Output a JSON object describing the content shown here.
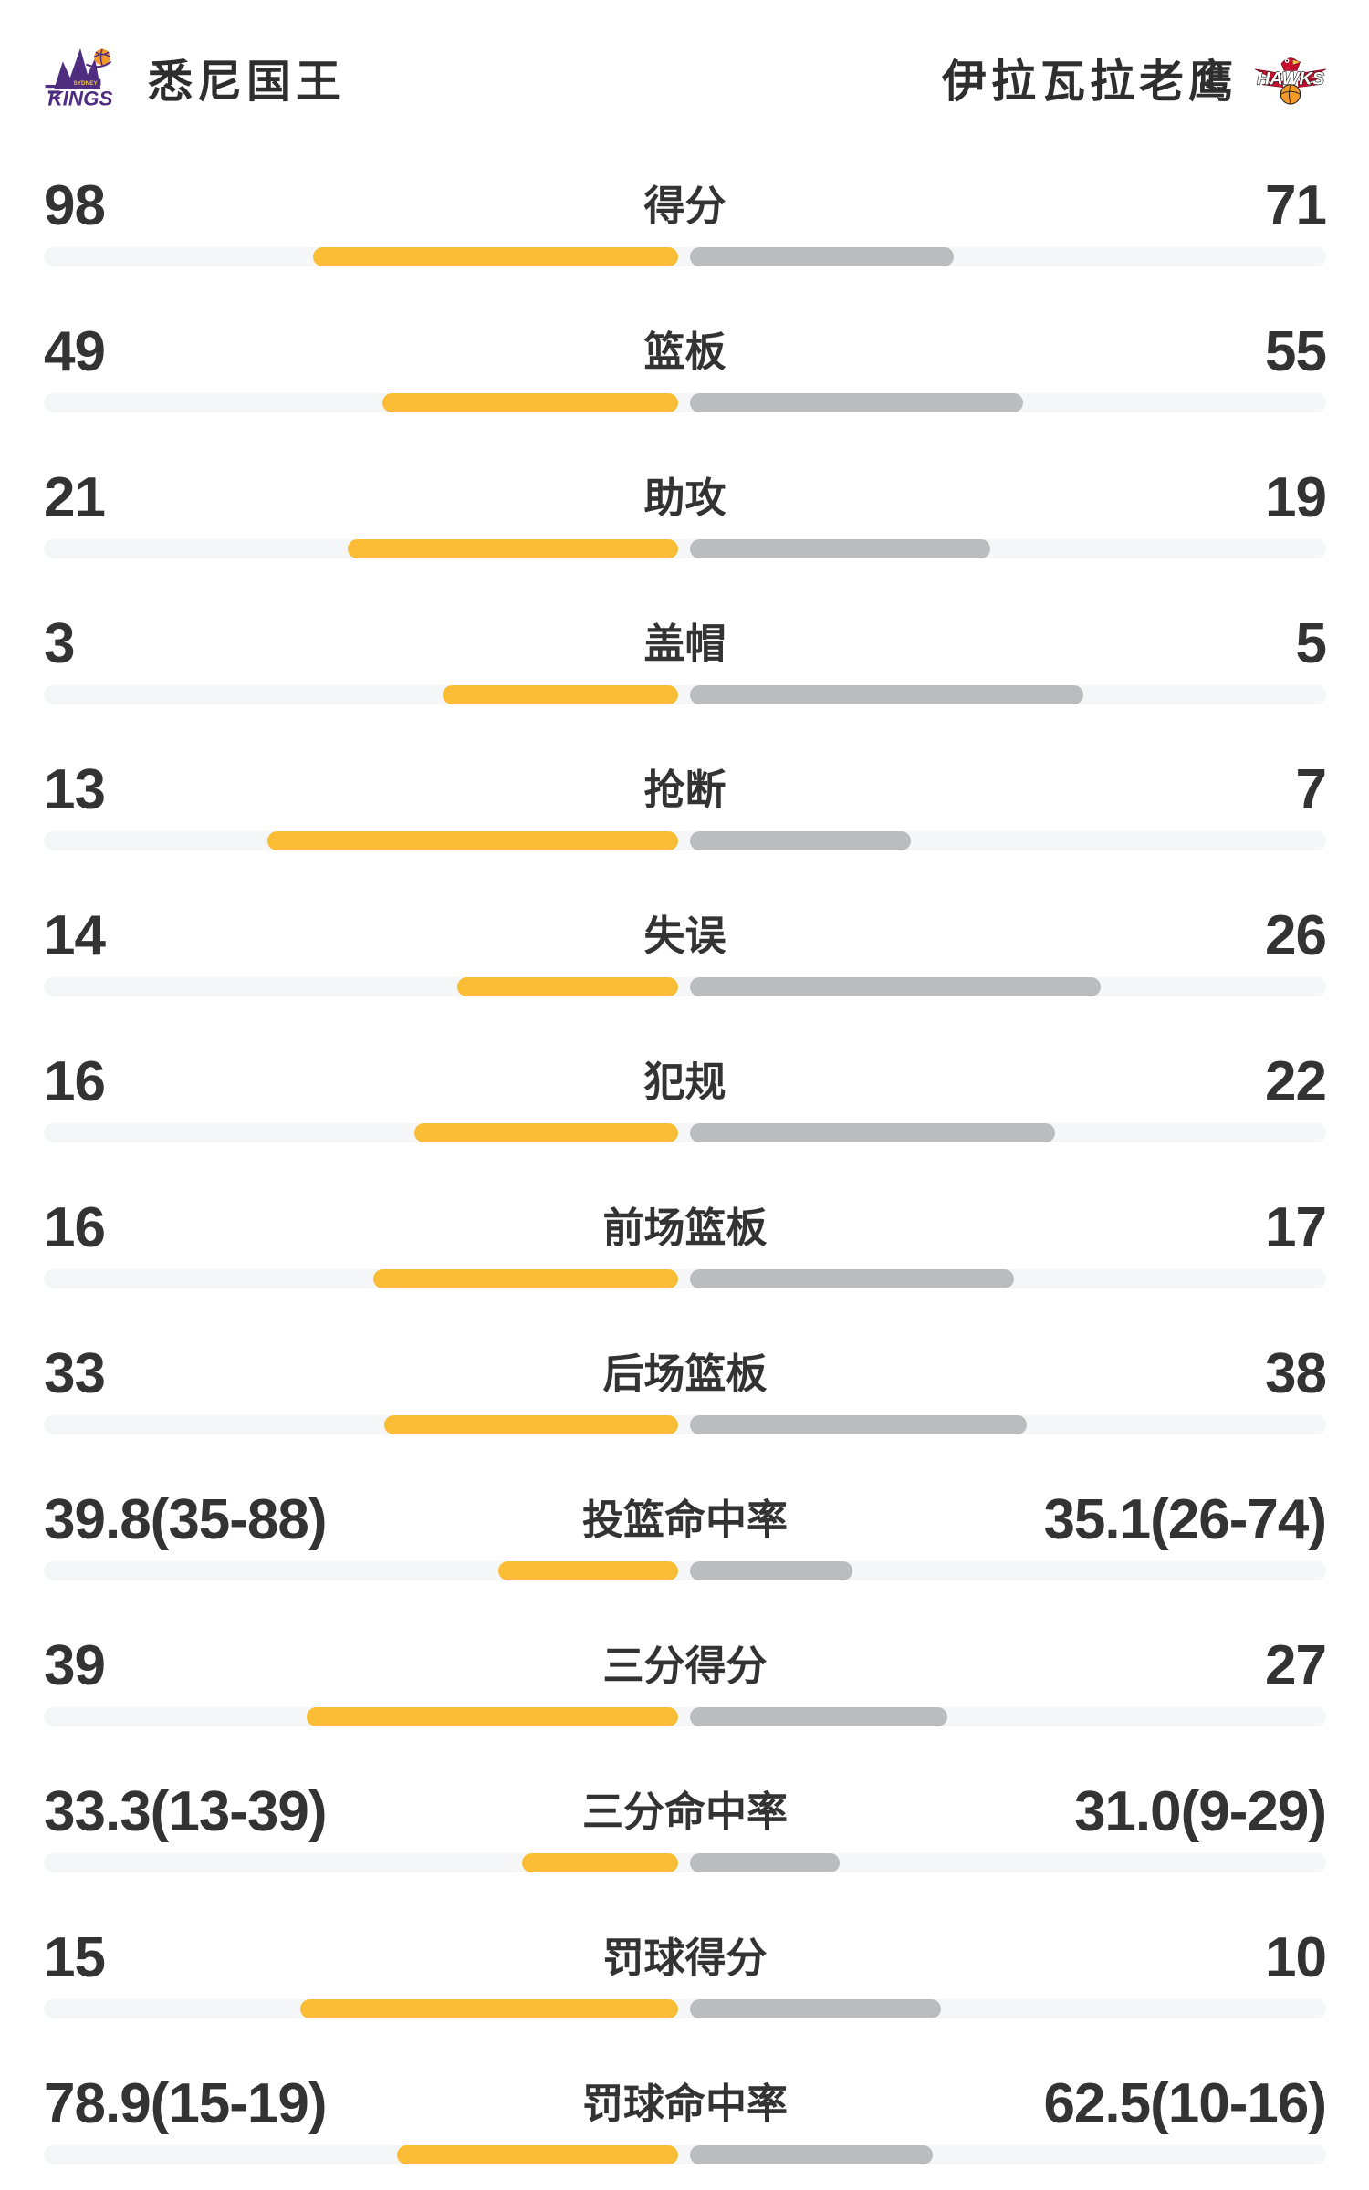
{
  "teams": {
    "left": {
      "name": "悉尼国王",
      "logo": "sydney-kings-logo"
    },
    "right": {
      "name": "伊拉瓦拉老鹰",
      "logo": "illawarra-hawks-logo"
    }
  },
  "colors": {
    "home_bar": "#FBBD35",
    "away_bar": "#BBBCBD",
    "track": "#F5F6F8",
    "text": "#333333",
    "kings_purple": "#4F2D7F",
    "hawks_red": "#C8102E",
    "ball_orange": "#F49A2B"
  },
  "stats": {
    "rows": [
      {
        "label": "得分",
        "home": "98",
        "away": "71",
        "home_bar_pct": 28.5,
        "away_bar_pct": 20.6
      },
      {
        "label": "篮板",
        "home": "49",
        "away": "55",
        "home_bar_pct": 23.1,
        "away_bar_pct": 26.0
      },
      {
        "label": "助攻",
        "home": "21",
        "away": "19",
        "home_bar_pct": 25.8,
        "away_bar_pct": 23.4
      },
      {
        "label": "盖帽",
        "home": "3",
        "away": "5",
        "home_bar_pct": 18.4,
        "away_bar_pct": 30.7
      },
      {
        "label": "抢断",
        "home": "13",
        "away": "7",
        "home_bar_pct": 32.0,
        "away_bar_pct": 17.2
      },
      {
        "label": "失误",
        "home": "14",
        "away": "26",
        "home_bar_pct": 17.2,
        "away_bar_pct": 32.0
      },
      {
        "label": "犯规",
        "home": "16",
        "away": "22",
        "home_bar_pct": 20.6,
        "away_bar_pct": 28.5
      },
      {
        "label": "前场篮板",
        "home": "16",
        "away": "17",
        "home_bar_pct": 23.8,
        "away_bar_pct": 25.3
      },
      {
        "label": "后场篮板",
        "home": "33",
        "away": "38",
        "home_bar_pct": 22.9,
        "away_bar_pct": 26.3
      },
      {
        "label": "投篮命中率",
        "home": "39.8(35-88)",
        "away": "35.1(26-74)",
        "home_bar_pct": 14.0,
        "away_bar_pct": 12.7
      },
      {
        "label": "三分得分",
        "home": "39",
        "away": "27",
        "home_bar_pct": 29.0,
        "away_bar_pct": 20.1
      },
      {
        "label": "三分命中率",
        "home": "33.3(13-39)",
        "away": "31.0(9-29)",
        "home_bar_pct": 12.2,
        "away_bar_pct": 11.7
      },
      {
        "label": "罚球得分",
        "home": "15",
        "away": "10",
        "home_bar_pct": 29.5,
        "away_bar_pct": 19.6
      },
      {
        "label": "罚球命中率",
        "home": "78.9(15-19)",
        "away": "62.5(10-16)",
        "home_bar_pct": 21.9,
        "away_bar_pct": 18.9
      }
    ]
  },
  "chart_data": {
    "type": "bar",
    "orientation": "horizontal-paired-from-center",
    "title": "悉尼国王 vs 伊拉瓦拉老鹰",
    "categories": [
      "得分",
      "篮板",
      "助攻",
      "盖帽",
      "抢断",
      "失误",
      "犯规",
      "前场篮板",
      "后场篮板",
      "投篮命中率",
      "三分得分",
      "三分命中率",
      "罚球得分",
      "罚球命中率"
    ],
    "series": [
      {
        "name": "悉尼国王",
        "color": "#FBBD35",
        "values": [
          98,
          49,
          21,
          3,
          13,
          14,
          16,
          16,
          33,
          39.8,
          39,
          33.3,
          15,
          78.9
        ],
        "labels": [
          "98",
          "49",
          "21",
          "3",
          "13",
          "14",
          "16",
          "16",
          "33",
          "39.8(35-88)",
          "39",
          "33.3(13-39)",
          "15",
          "78.9(15-19)"
        ]
      },
      {
        "name": "伊拉瓦拉老鹰",
        "color": "#BBBCBD",
        "values": [
          71,
          55,
          19,
          5,
          7,
          26,
          22,
          17,
          38,
          35.1,
          27,
          31.0,
          10,
          62.5
        ],
        "labels": [
          "71",
          "55",
          "19",
          "5",
          "7",
          "26",
          "22",
          "17",
          "38",
          "35.1(26-74)",
          "27",
          "31.0(9-29)",
          "10",
          "62.5(10-16)"
        ]
      }
    ],
    "legend_position": "top",
    "grid": false,
    "notes": "bar pair anchored at track center; count-rows split ~49% of track width proportionally to value share"
  }
}
